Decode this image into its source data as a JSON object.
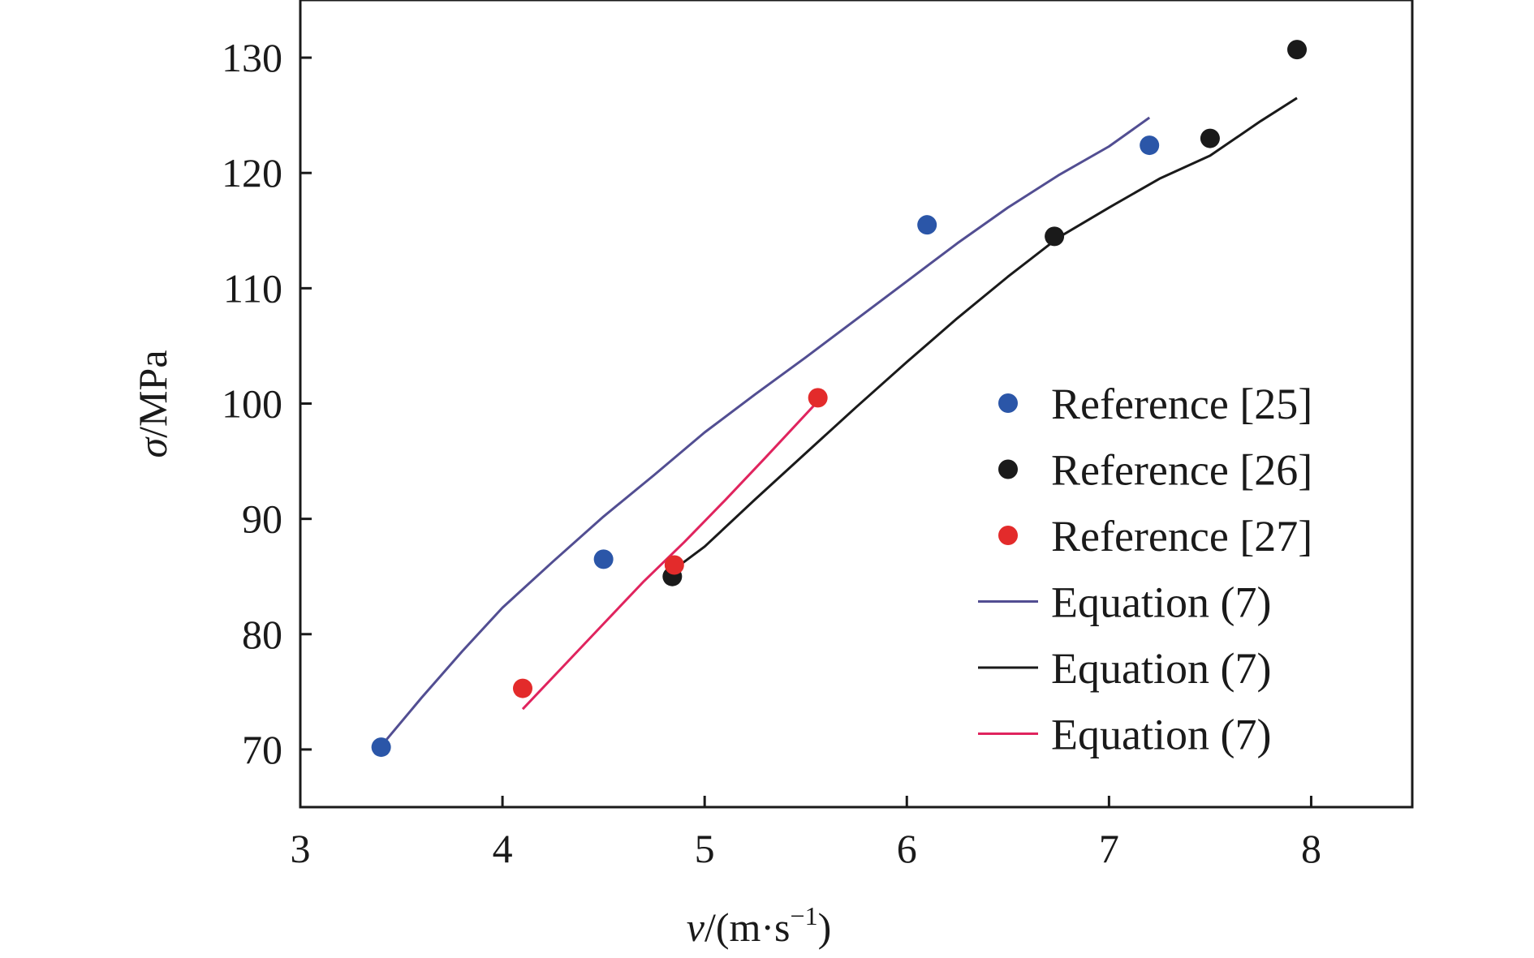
{
  "chart_data": {
    "type": "scatter",
    "xlabel_italic": "v",
    "xlabel_rest": "/(m·s",
    "xlabel_sup": "−1",
    "xlabel_close": ")",
    "ylabel_italic": "σ",
    "ylabel_rest": "/MPa",
    "xlim": [
      3,
      8.5
    ],
    "ylim": [
      65,
      135
    ],
    "xticks": [
      "3",
      "4",
      "5",
      "6",
      "7",
      "8"
    ],
    "xtick_values": [
      3,
      4,
      5,
      6,
      7,
      8
    ],
    "yticks": [
      "70",
      "80",
      "90",
      "100",
      "110",
      "120",
      "130"
    ],
    "ytick_values": [
      70,
      80,
      90,
      100,
      110,
      120,
      130
    ],
    "legend_position": "right",
    "series": [
      {
        "name": "Reference [25]",
        "kind": "points",
        "color": "#2b56a8",
        "points": [
          [
            3.4,
            70.2
          ],
          [
            4.5,
            86.5
          ],
          [
            6.1,
            115.5
          ],
          [
            7.2,
            122.4
          ]
        ]
      },
      {
        "name": "Reference [26]",
        "kind": "points",
        "color": "#1a1a1a",
        "points": [
          [
            4.84,
            85.0
          ],
          [
            6.73,
            114.5
          ],
          [
            7.5,
            123.0
          ],
          [
            7.93,
            130.7
          ]
        ]
      },
      {
        "name": "Reference [27]",
        "kind": "points",
        "color": "#e32b2b",
        "points": [
          [
            4.1,
            75.3
          ],
          [
            4.85,
            86.0
          ],
          [
            5.56,
            100.5
          ]
        ]
      },
      {
        "name": "Equation (7)",
        "kind": "line",
        "color": "#524e92",
        "points": [
          [
            3.4,
            70.3
          ],
          [
            3.6,
            74.5
          ],
          [
            3.8,
            78.5
          ],
          [
            4.0,
            82.3
          ],
          [
            4.25,
            86.3
          ],
          [
            4.5,
            90.2
          ],
          [
            4.75,
            93.8
          ],
          [
            5.0,
            97.5
          ],
          [
            5.25,
            100.8
          ],
          [
            5.5,
            104.0
          ],
          [
            5.75,
            107.3
          ],
          [
            6.0,
            110.6
          ],
          [
            6.25,
            113.9
          ],
          [
            6.5,
            117.0
          ],
          [
            6.75,
            119.8
          ],
          [
            7.0,
            122.3
          ],
          [
            7.2,
            124.8
          ]
        ]
      },
      {
        "name": "Equation (7)",
        "kind": "line",
        "color": "#1a1a1a",
        "points": [
          [
            4.84,
            85.5
          ],
          [
            5.0,
            87.6
          ],
          [
            5.25,
            91.7
          ],
          [
            5.5,
            95.7
          ],
          [
            5.75,
            99.7
          ],
          [
            6.0,
            103.6
          ],
          [
            6.25,
            107.4
          ],
          [
            6.5,
            111.0
          ],
          [
            6.75,
            114.4
          ],
          [
            7.0,
            117.0
          ],
          [
            7.25,
            119.5
          ],
          [
            7.5,
            121.5
          ],
          [
            7.75,
            124.5
          ],
          [
            7.93,
            126.5
          ]
        ]
      },
      {
        "name": "Equation (7)",
        "kind": "line",
        "color": "#e0245e",
        "points": [
          [
            4.1,
            73.5
          ],
          [
            4.3,
            77.2
          ],
          [
            4.5,
            80.9
          ],
          [
            4.7,
            84.6
          ],
          [
            4.9,
            88.0
          ],
          [
            5.1,
            91.6
          ],
          [
            5.3,
            95.3
          ],
          [
            5.56,
            100.2
          ]
        ]
      }
    ]
  }
}
